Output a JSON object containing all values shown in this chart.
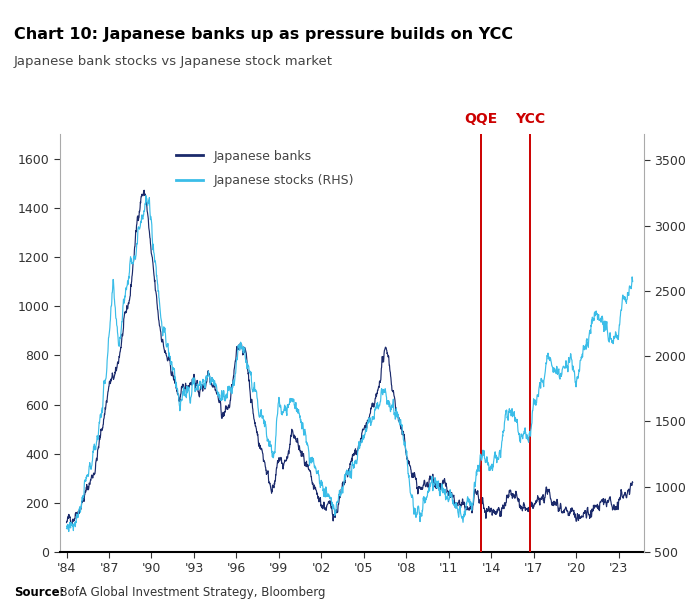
{
  "title": "Chart 10: Japanese banks up as pressure builds on YCC",
  "subtitle": "Japanese bank stocks vs Japanese stock market",
  "source_bold": "Source:",
  "source_regular": "  BofA Global Investment Strategy, Bloomberg",
  "legend": [
    "Japanese banks",
    "Japanese stocks (RHS)"
  ],
  "bank_color": "#1b2a6b",
  "stock_color": "#3bbde8",
  "vline_color": "#cc0000",
  "vline_labels": [
    "QQE",
    "YCC"
  ],
  "vline_years": [
    2013.25,
    2016.75
  ],
  "ylim_left": [
    0,
    1700
  ],
  "ylim_right": [
    500,
    3700
  ],
  "yticks_left": [
    0,
    200,
    400,
    600,
    800,
    1000,
    1200,
    1400,
    1600
  ],
  "yticks_right": [
    500,
    1000,
    1500,
    2000,
    2500,
    3000,
    3500
  ],
  "xticks": [
    1984,
    1987,
    1990,
    1993,
    1996,
    1999,
    2002,
    2005,
    2008,
    2011,
    2014,
    2017,
    2020,
    2023
  ],
  "xlim": [
    1983.5,
    2024.8
  ],
  "bank_keypoints": [
    [
      1984.0,
      120
    ],
    [
      1984.5,
      150
    ],
    [
      1985.0,
      190
    ],
    [
      1985.5,
      260
    ],
    [
      1986.0,
      340
    ],
    [
      1986.5,
      500
    ],
    [
      1987.0,
      680
    ],
    [
      1987.5,
      720
    ],
    [
      1988.0,
      900
    ],
    [
      1988.5,
      1050
    ],
    [
      1989.0,
      1350
    ],
    [
      1989.3,
      1460
    ],
    [
      1989.6,
      1450
    ],
    [
      1990.0,
      1200
    ],
    [
      1990.5,
      950
    ],
    [
      1991.0,
      800
    ],
    [
      1991.5,
      720
    ],
    [
      1992.0,
      620
    ],
    [
      1992.5,
      680
    ],
    [
      1993.0,
      720
    ],
    [
      1993.3,
      650
    ],
    [
      1993.8,
      680
    ],
    [
      1994.0,
      740
    ],
    [
      1994.5,
      680
    ],
    [
      1995.0,
      560
    ],
    [
      1995.5,
      590
    ],
    [
      1996.0,
      790
    ],
    [
      1996.3,
      860
    ],
    [
      1996.7,
      800
    ],
    [
      1997.0,
      650
    ],
    [
      1997.3,
      520
    ],
    [
      1997.7,
      430
    ],
    [
      1998.0,
      370
    ],
    [
      1998.3,
      290
    ],
    [
      1998.7,
      260
    ],
    [
      1999.0,
      380
    ],
    [
      1999.3,
      350
    ],
    [
      1999.7,
      400
    ],
    [
      2000.0,
      490
    ],
    [
      2000.3,
      440
    ],
    [
      2000.7,
      380
    ],
    [
      2001.0,
      330
    ],
    [
      2001.3,
      270
    ],
    [
      2001.7,
      220
    ],
    [
      2002.0,
      200
    ],
    [
      2002.3,
      185
    ],
    [
      2002.7,
      175
    ],
    [
      2003.0,
      160
    ],
    [
      2003.3,
      210
    ],
    [
      2003.7,
      280
    ],
    [
      2004.0,
      340
    ],
    [
      2004.5,
      420
    ],
    [
      2005.0,
      490
    ],
    [
      2005.3,
      530
    ],
    [
      2005.7,
      580
    ],
    [
      2006.0,
      640
    ],
    [
      2006.3,
      780
    ],
    [
      2006.7,
      820
    ],
    [
      2007.0,
      680
    ],
    [
      2007.3,
      580
    ],
    [
      2007.7,
      480
    ],
    [
      2008.0,
      410
    ],
    [
      2008.3,
      340
    ],
    [
      2008.7,
      280
    ],
    [
      2009.0,
      250
    ],
    [
      2009.3,
      270
    ],
    [
      2009.7,
      295
    ],
    [
      2010.0,
      300
    ],
    [
      2010.3,
      285
    ],
    [
      2010.7,
      265
    ],
    [
      2011.0,
      235
    ],
    [
      2011.3,
      200
    ],
    [
      2011.7,
      185
    ],
    [
      2012.0,
      175
    ],
    [
      2012.3,
      170
    ],
    [
      2012.7,
      185
    ],
    [
      2013.0,
      230
    ],
    [
      2013.25,
      200
    ],
    [
      2013.5,
      180
    ],
    [
      2013.8,
      175
    ],
    [
      2014.0,
      170
    ],
    [
      2014.3,
      175
    ],
    [
      2014.7,
      180
    ],
    [
      2015.0,
      200
    ],
    [
      2015.3,
      230
    ],
    [
      2015.7,
      215
    ],
    [
      2016.0,
      185
    ],
    [
      2016.3,
      175
    ],
    [
      2016.75,
      165
    ],
    [
      2016.9,
      175
    ],
    [
      2017.0,
      185
    ],
    [
      2017.3,
      205
    ],
    [
      2017.7,
      215
    ],
    [
      2018.0,
      235
    ],
    [
      2018.3,
      220
    ],
    [
      2018.7,
      200
    ],
    [
      2019.0,
      185
    ],
    [
      2019.3,
      170
    ],
    [
      2019.7,
      165
    ],
    [
      2020.0,
      135
    ],
    [
      2020.3,
      145
    ],
    [
      2020.7,
      155
    ],
    [
      2021.0,
      165
    ],
    [
      2021.3,
      175
    ],
    [
      2021.7,
      185
    ],
    [
      2022.0,
      205
    ],
    [
      2022.3,
      195
    ],
    [
      2022.7,
      195
    ],
    [
      2023.0,
      210
    ],
    [
      2023.3,
      230
    ],
    [
      2023.7,
      250
    ],
    [
      2024.0,
      270
    ]
  ],
  "stock_keypoints": [
    [
      1984.0,
      680
    ],
    [
      1984.5,
      750
    ],
    [
      1985.0,
      870
    ],
    [
      1985.5,
      1050
    ],
    [
      1986.0,
      1300
    ],
    [
      1986.5,
      1600
    ],
    [
      1987.0,
      2100
    ],
    [
      1987.3,
      2500
    ],
    [
      1987.7,
      2100
    ],
    [
      1988.0,
      2400
    ],
    [
      1988.5,
      2700
    ],
    [
      1989.0,
      2900
    ],
    [
      1989.3,
      3100
    ],
    [
      1989.6,
      3200
    ],
    [
      1989.9,
      3100
    ],
    [
      1990.3,
      2700
    ],
    [
      1990.7,
      2300
    ],
    [
      1991.0,
      2100
    ],
    [
      1991.5,
      1900
    ],
    [
      1992.0,
      1650
    ],
    [
      1992.5,
      1700
    ],
    [
      1993.0,
      1800
    ],
    [
      1993.3,
      1750
    ],
    [
      1993.7,
      1750
    ],
    [
      1994.0,
      1880
    ],
    [
      1994.3,
      1820
    ],
    [
      1994.7,
      1750
    ],
    [
      1995.0,
      1680
    ],
    [
      1995.3,
      1700
    ],
    [
      1995.7,
      1700
    ],
    [
      1996.0,
      1950
    ],
    [
      1996.3,
      2100
    ],
    [
      1996.7,
      2000
    ],
    [
      1997.0,
      1870
    ],
    [
      1997.3,
      1700
    ],
    [
      1997.7,
      1580
    ],
    [
      1998.0,
      1480
    ],
    [
      1998.3,
      1320
    ],
    [
      1998.7,
      1280
    ],
    [
      1999.0,
      1570
    ],
    [
      1999.3,
      1550
    ],
    [
      1999.7,
      1580
    ],
    [
      2000.0,
      1680
    ],
    [
      2000.3,
      1620
    ],
    [
      2000.7,
      1500
    ],
    [
      2001.0,
      1380
    ],
    [
      2001.3,
      1220
    ],
    [
      2001.7,
      1080
    ],
    [
      2002.0,
      980
    ],
    [
      2002.3,
      940
    ],
    [
      2002.7,
      900
    ],
    [
      2003.0,
      820
    ],
    [
      2003.3,
      960
    ],
    [
      2003.7,
      1050
    ],
    [
      2004.0,
      1120
    ],
    [
      2004.5,
      1200
    ],
    [
      2005.0,
      1350
    ],
    [
      2005.3,
      1440
    ],
    [
      2005.7,
      1500
    ],
    [
      2006.0,
      1650
    ],
    [
      2006.3,
      1680
    ],
    [
      2006.7,
      1660
    ],
    [
      2007.0,
      1600
    ],
    [
      2007.3,
      1560
    ],
    [
      2007.7,
      1440
    ],
    [
      2008.0,
      1250
    ],
    [
      2008.3,
      1000
    ],
    [
      2008.7,
      820
    ],
    [
      2009.0,
      800
    ],
    [
      2009.3,
      920
    ],
    [
      2009.7,
      980
    ],
    [
      2010.0,
      1000
    ],
    [
      2010.3,
      970
    ],
    [
      2010.7,
      940
    ],
    [
      2011.0,
      910
    ],
    [
      2011.3,
      880
    ],
    [
      2011.7,
      840
    ],
    [
      2012.0,
      840
    ],
    [
      2012.3,
      860
    ],
    [
      2012.7,
      920
    ],
    [
      2013.0,
      1100
    ],
    [
      2013.25,
      1280
    ],
    [
      2013.5,
      1220
    ],
    [
      2013.8,
      1200
    ],
    [
      2014.0,
      1200
    ],
    [
      2014.3,
      1260
    ],
    [
      2014.7,
      1300
    ],
    [
      2015.0,
      1550
    ],
    [
      2015.3,
      1580
    ],
    [
      2015.7,
      1530
    ],
    [
      2016.0,
      1400
    ],
    [
      2016.3,
      1380
    ],
    [
      2016.75,
      1400
    ],
    [
      2016.9,
      1520
    ],
    [
      2017.0,
      1600
    ],
    [
      2017.3,
      1700
    ],
    [
      2017.7,
      1820
    ],
    [
      2018.0,
      1960
    ],
    [
      2018.3,
      1920
    ],
    [
      2018.7,
      1850
    ],
    [
      2019.0,
      1880
    ],
    [
      2019.3,
      1950
    ],
    [
      2019.7,
      2000
    ],
    [
      2020.0,
      1680
    ],
    [
      2020.3,
      1980
    ],
    [
      2020.7,
      2100
    ],
    [
      2021.0,
      2200
    ],
    [
      2021.3,
      2350
    ],
    [
      2021.7,
      2300
    ],
    [
      2022.0,
      2200
    ],
    [
      2022.3,
      2150
    ],
    [
      2022.7,
      2100
    ],
    [
      2023.0,
      2200
    ],
    [
      2023.3,
      2380
    ],
    [
      2023.7,
      2480
    ],
    [
      2024.0,
      2600
    ]
  ]
}
